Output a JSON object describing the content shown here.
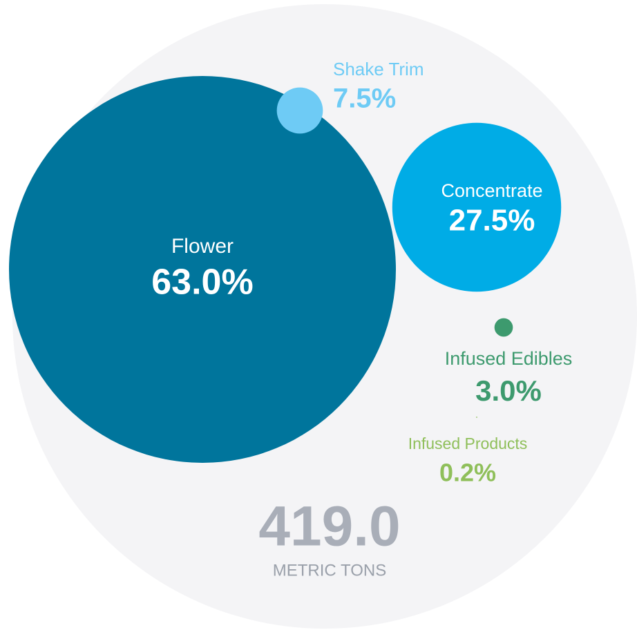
{
  "chart_data": {
    "type": "bubble",
    "categories": [
      "Flower",
      "Concentrate",
      "Shake Trim",
      "Infused Edibles",
      "Infused Products"
    ],
    "values": [
      63.0,
      27.5,
      7.5,
      3.0,
      0.2
    ],
    "value_labels": [
      "63.0%",
      "27.5%",
      "7.5%",
      "3.0%",
      "0.2%"
    ],
    "colors": [
      "#00759c",
      "#00ace6",
      "#6ecbf5",
      "#3d9a6e",
      "#8fbf5a"
    ],
    "total": "419.0",
    "total_unit": "METRIC TONS"
  }
}
